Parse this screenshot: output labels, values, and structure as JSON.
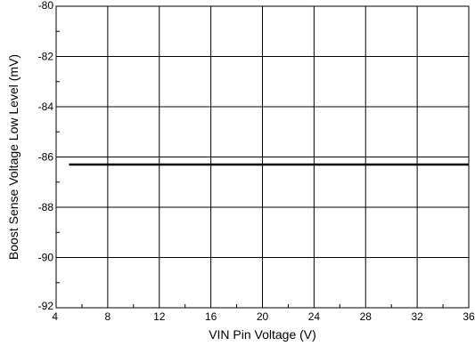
{
  "chart_data": {
    "type": "line",
    "title": "",
    "xlabel": "VIN Pin Voltage (V)",
    "ylabel": "Boost Sense Voltage Low Level (mV)",
    "xlim": [
      4,
      36
    ],
    "ylim": [
      -92,
      -80
    ],
    "x_ticks": [
      4,
      8,
      12,
      16,
      20,
      24,
      28,
      32,
      36
    ],
    "x_tick_labels": [
      "4",
      "8",
      "12",
      "16",
      "20",
      "24",
      "28",
      "32",
      "36"
    ],
    "y_ticks": [
      -80,
      -82,
      -84,
      -86,
      -88,
      -90,
      -92
    ],
    "y_tick_labels": [
      "-80",
      "-82",
      "-84",
      "-86",
      "-88",
      "-90",
      "-92"
    ],
    "grid": true,
    "legend": "none",
    "series": [
      {
        "x": [
          5,
          36
        ],
        "y": [
          -86.3,
          -86.3
        ],
        "color": "#000000"
      }
    ]
  }
}
